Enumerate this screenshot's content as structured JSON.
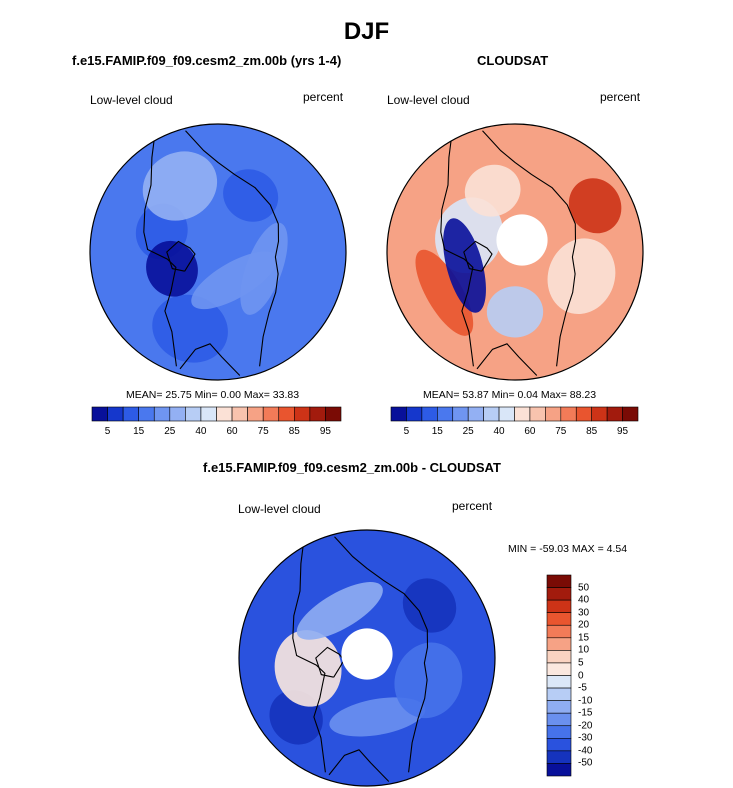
{
  "title": "DJF",
  "panels": [
    {
      "title": "f.e15.FAMIP.f09_f09.cesm2_zm.00b (yrs 1-4)",
      "variable_label": "Low-level cloud",
      "units_label": "percent",
      "stats": "MEAN=  25.75  Min=   0.00  Max=  33.83",
      "polar_hole": false
    },
    {
      "title": "CLOUDSAT",
      "variable_label": "Low-level cloud",
      "units_label": "percent",
      "stats": "MEAN=  53.87  Min=   0.04  Max=  88.23",
      "polar_hole": true
    },
    {
      "title": "f.e15.FAMIP.f09_f09.cesm2_zm.00b - CLOUDSAT",
      "variable_label": "Low-level cloud",
      "units_label": "percent",
      "stats": "MIN = -59.03 MAX =   4.54",
      "polar_hole": true
    }
  ],
  "colorbar_abs": {
    "tick_labels": [
      "5",
      "15",
      "25",
      "40",
      "60",
      "75",
      "85",
      "95"
    ],
    "colors": [
      "#08109a",
      "#1537cc",
      "#2d5be6",
      "#4a78ee",
      "#6f95f1",
      "#93b0f3",
      "#b7cdf5",
      "#d9e6f8",
      "#fbe1d6",
      "#f8c3ae",
      "#f6a285",
      "#f27b58",
      "#e9552f",
      "#cd3317",
      "#a21b0d",
      "#7a0b05"
    ]
  },
  "colorbar_diff": {
    "tick_labels": [
      "50",
      "40",
      "30",
      "20",
      "15",
      "10",
      "5",
      "0",
      "-5",
      "-10",
      "-15",
      "-20",
      "-30",
      "-40",
      "-50"
    ],
    "colors": [
      "#7a0b05",
      "#a21b0d",
      "#cd3317",
      "#e9552f",
      "#f27b58",
      "#f6a285",
      "#fad3c1",
      "#fbe8df",
      "#dce8f8",
      "#b7cdf5",
      "#8fadf2",
      "#6a90ef",
      "#4672ea",
      "#2a52de",
      "#1533bd",
      "#08109a"
    ]
  },
  "map_fields": {
    "model": {
      "base": "#4a78ee",
      "patches": [
        {
          "lon": 200,
          "r": 0.55,
          "color": "#2d5be6"
        },
        {
          "lon": 240,
          "r": 0.7,
          "color": "#93b0f3"
        },
        {
          "lon": 20,
          "r": 0.45,
          "color": "#6f95f1"
        },
        {
          "lon": 300,
          "r": 0.6,
          "color": "#2d5be6"
        },
        {
          "lon": 110,
          "r": 0.75,
          "color": "#2d5be6"
        },
        {
          "lon": 60,
          "r": 0.3,
          "color": "#6f95f1"
        },
        {
          "lon": 160,
          "r": 0.45,
          "color": "#08109a"
        }
      ]
    },
    "obs": {
      "base": "#f6a285",
      "patches": [
        {
          "lon": 90,
          "r": 0.55,
          "color": "#b7cdf5"
        },
        {
          "lon": 200,
          "r": 0.45,
          "color": "#d9e6f8"
        },
        {
          "lon": 150,
          "r": 0.75,
          "color": "#e9552f"
        },
        {
          "lon": 330,
          "r": 0.85,
          "color": "#cd3317"
        },
        {
          "lon": 20,
          "r": 0.65,
          "color": "#fbe1d6"
        },
        {
          "lon": 165,
          "r": 0.48,
          "color": "#08109a"
        },
        {
          "lon": 250,
          "r": 0.6,
          "color": "#fbe1d6"
        }
      ]
    },
    "diff": {
      "base": "#2a52de",
      "patches": [
        {
          "lon": 140,
          "r": 0.85,
          "color": "#1533bd"
        },
        {
          "lon": 170,
          "r": 0.55,
          "color": "#fbe8df"
        },
        {
          "lon": 80,
          "r": 0.55,
          "color": "#6a90ef"
        },
        {
          "lon": 320,
          "r": 0.75,
          "color": "#1533bd"
        },
        {
          "lon": 20,
          "r": 0.6,
          "color": "#4672ea"
        },
        {
          "lon": 240,
          "r": 0.5,
          "color": "#8fadf2"
        }
      ]
    }
  }
}
